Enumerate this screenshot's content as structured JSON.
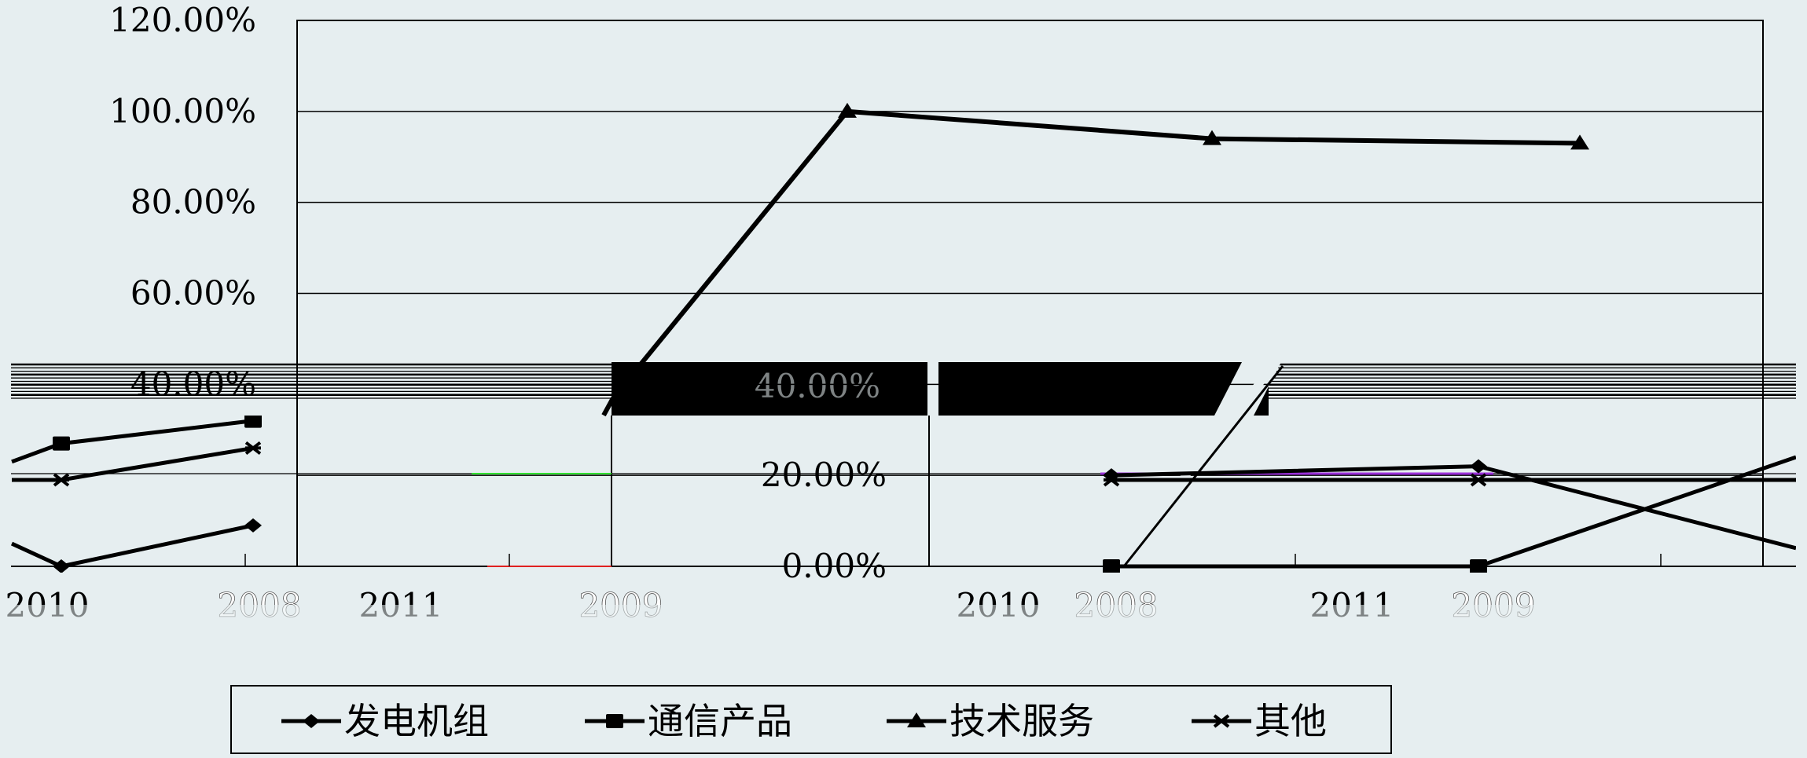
{
  "chart_data": {
    "type": "line",
    "title": "",
    "xlabel": "",
    "ylabel": "",
    "ylim": [
      0,
      1.2
    ],
    "y_tick_labels": [
      "0.00%",
      "20.00%",
      "40.00%",
      "60.00%",
      "80.00%",
      "100.00%",
      "120.00%"
    ],
    "y_ticks": [
      0,
      0.2,
      0.4,
      0.6,
      0.8,
      1.0,
      1.2
    ],
    "x_tick_labels": [
      "2010",
      "2008",
      "2011",
      "2009",
      "2010",
      "2008",
      "2011",
      "2009"
    ],
    "grid": true,
    "legend_position": "bottom",
    "series": [
      {
        "name": "发电机组",
        "marker": "diamond",
        "points": [
          {
            "group": 0,
            "x": 0.0,
            "y": 0.05
          },
          {
            "group": 0,
            "x": 1.0,
            "y": 0.0
          },
          {
            "group": 0,
            "x": 2.0,
            "y": 0.09
          },
          {
            "group": 2,
            "x": 1.0,
            "y": 0.2
          },
          {
            "group": 2,
            "x": 2.0,
            "y": 0.22
          },
          {
            "group": 2,
            "x": 3.0,
            "y": 0.04
          }
        ]
      },
      {
        "name": "通信产品",
        "marker": "square",
        "points": [
          {
            "group": 0,
            "x": 0.0,
            "y": 0.23
          },
          {
            "group": 0,
            "x": 1.0,
            "y": 0.27
          },
          {
            "group": 0,
            "x": 2.0,
            "y": 0.32
          },
          {
            "group": 2,
            "x": 1.0,
            "y": 0.0
          },
          {
            "group": 2,
            "x": 2.0,
            "y": 0.0
          },
          {
            "group": 2,
            "x": 3.0,
            "y": 0.24
          }
        ]
      },
      {
        "name": "技术服务",
        "marker": "triangle",
        "points": [
          {
            "group": 1,
            "x": 0.0,
            "y": 0.37
          },
          {
            "group": 1,
            "x": 1.0,
            "y": 1.0
          },
          {
            "group": 1,
            "x": 2.0,
            "y": 0.94
          },
          {
            "group": 1,
            "x": 3.0,
            "y": 0.93
          }
        ]
      },
      {
        "name": "其他",
        "marker": "asterisk",
        "points": [
          {
            "group": 0,
            "x": 0.0,
            "y": 0.19
          },
          {
            "group": 0,
            "x": 1.0,
            "y": 0.19
          },
          {
            "group": 0,
            "x": 2.0,
            "y": 0.26
          },
          {
            "group": 2,
            "x": 1.0,
            "y": 0.19
          },
          {
            "group": 2,
            "x": 2.0,
            "y": 0.19
          },
          {
            "group": 2,
            "x": 3.0,
            "y": 0.19
          }
        ]
      }
    ],
    "colors": {
      "background": "#e6eef0",
      "line": "#000000",
      "grid": "#000000",
      "text": "#000000",
      "band": "#000000",
      "glitch_magenta": "#9a30d8",
      "glitch_green": "#2ee02e",
      "glitch_red": "#e02020"
    }
  }
}
